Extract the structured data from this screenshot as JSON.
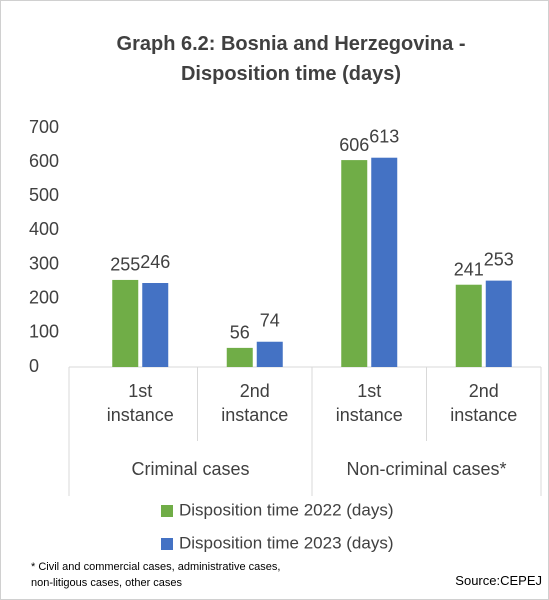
{
  "chart_data": {
    "type": "bar",
    "title": "Graph 6.2: Bosnia and Herzegovina - Disposition time (days)",
    "groups": [
      {
        "name": "Criminal cases",
        "categories": [
          "1st instance",
          "2nd instance"
        ]
      },
      {
        "name": "Non-criminal cases*",
        "categories": [
          "1st instance",
          "2nd instance"
        ]
      }
    ],
    "series": [
      {
        "name": "Disposition time 2022 (days)",
        "color": "#70ad47",
        "values": [
          255,
          56,
          606,
          241
        ]
      },
      {
        "name": "Disposition time 2023 (days)",
        "color": "#4472c4",
        "values": [
          246,
          74,
          613,
          253
        ]
      }
    ],
    "ylim": [
      0,
      700
    ],
    "yticks": [
      0,
      100,
      200,
      300,
      400,
      500,
      600,
      700
    ],
    "grid": false,
    "legend": "bottom",
    "footnote": "* Civil and commercial cases, administrative cases, non-litigous cases, other cases",
    "source": "Source:CEPEJ"
  }
}
